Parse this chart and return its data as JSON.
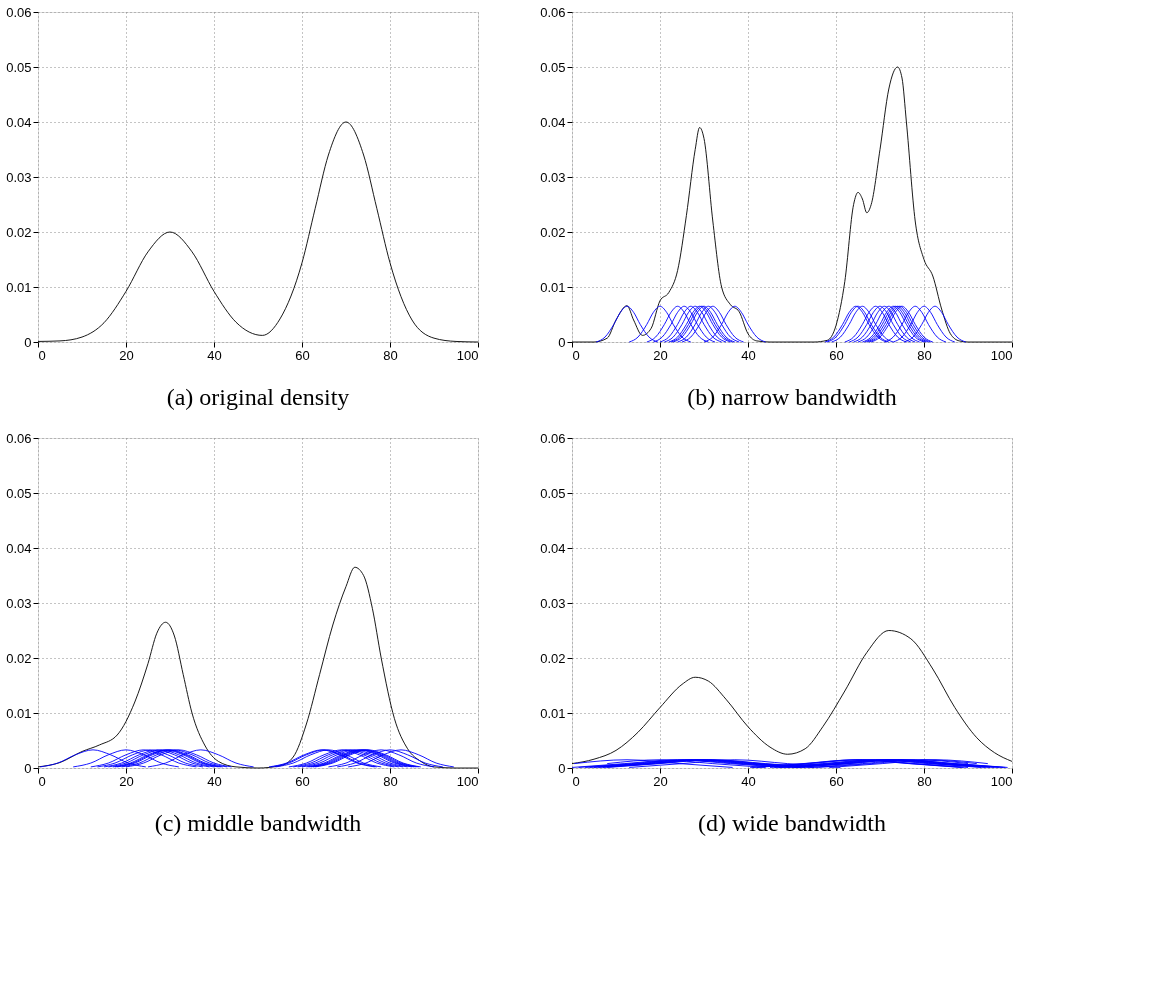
{
  "chart_data": [
    {
      "type": "line",
      "title": "(a) original density",
      "xlim": [
        0,
        100
      ],
      "ylim": [
        0,
        0.06
      ],
      "xticks": [
        0,
        20,
        40,
        60,
        80,
        100
      ],
      "yticks": [
        0,
        0.01,
        0.02,
        0.03,
        0.04,
        0.05,
        0.06
      ],
      "grid": true,
      "series": [
        {
          "color": "#000000",
          "x": [
            0,
            5,
            10,
            15,
            20,
            25,
            30,
            35,
            40,
            45,
            51,
            55,
            60,
            63,
            66,
            70,
            74,
            77,
            80,
            85,
            90,
            95,
            100
          ],
          "values": [
            0.0001,
            0.0002,
            0.0009,
            0.0035,
            0.0092,
            0.0164,
            0.02,
            0.0164,
            0.0092,
            0.0036,
            0.0012,
            0.0042,
            0.0144,
            0.0243,
            0.034,
            0.04,
            0.034,
            0.0243,
            0.0144,
            0.004,
            0.0007,
            0.0001,
            0
          ]
        }
      ]
    },
    {
      "type": "line",
      "title": "(b) narrow bandwidth",
      "xlim": [
        0,
        100
      ],
      "ylim": [
        0,
        0.06
      ],
      "xticks": [
        0,
        20,
        40,
        60,
        80,
        100
      ],
      "yticks": [
        0,
        0.01,
        0.02,
        0.03,
        0.04,
        0.05,
        0.06
      ],
      "grid": true,
      "series": [
        {
          "color": "#000000",
          "x": [
            0,
            5,
            8,
            10,
            12.5,
            14,
            16,
            18,
            20,
            22,
            24,
            26,
            28,
            29,
            30,
            32,
            34,
            36,
            38,
            40,
            42,
            45,
            55,
            58,
            60,
            62,
            64,
            65,
            66,
            67,
            68,
            70,
            72,
            74,
            75,
            76,
            78,
            80,
            82,
            84,
            86,
            88,
            90,
            100
          ],
          "values": [
            0,
            0,
            0.0007,
            0.004,
            0.0066,
            0.004,
            0.0012,
            0.0025,
            0.0075,
            0.009,
            0.013,
            0.023,
            0.035,
            0.039,
            0.037,
            0.022,
            0.01,
            0.0068,
            0.0055,
            0.0015,
            0.0002,
            0,
            0,
            0.0003,
            0.003,
            0.011,
            0.025,
            0.0272,
            0.026,
            0.0235,
            0.025,
            0.035,
            0.046,
            0.05,
            0.048,
            0.04,
            0.022,
            0.015,
            0.012,
            0.006,
            0.0015,
            0.0002,
            0,
            0
          ]
        },
        {
          "color": "#0000ff",
          "x": [
            5.5,
            7.5,
            9.5,
            11,
            12.5,
            14,
            15.5,
            17.5,
            19.5
          ],
          "values": [
            0,
            0.0009,
            0.0032,
            0.0054,
            0.0065,
            0.0054,
            0.0032,
            0.0009,
            0
          ]
        },
        {
          "color": "#0000ff",
          "x": [
            13,
            15,
            17,
            18.5,
            20,
            21.5,
            23,
            25,
            27
          ],
          "values": [
            0,
            0.0009,
            0.0032,
            0.0054,
            0.0065,
            0.0054,
            0.0032,
            0.0009,
            0
          ]
        },
        {
          "color": "#0000ff",
          "x": [
            17,
            19,
            21,
            22.5,
            24,
            25.5,
            27,
            29,
            31
          ],
          "values": [
            0,
            0.0009,
            0.0032,
            0.0054,
            0.0065,
            0.0054,
            0.0032,
            0.0009,
            0
          ]
        },
        {
          "color": "#0000ff",
          "x": [
            18.5,
            20.5,
            22.5,
            24,
            25.5,
            27,
            28.5,
            30.5,
            32.5
          ],
          "values": [
            0,
            0.0009,
            0.0032,
            0.0054,
            0.0065,
            0.0054,
            0.0032,
            0.0009,
            0
          ]
        },
        {
          "color": "#0000ff",
          "x": [
            20,
            22,
            24,
            25.5,
            27,
            28.5,
            30,
            32,
            34
          ],
          "values": [
            0,
            0.0009,
            0.0032,
            0.0054,
            0.0065,
            0.0054,
            0.0032,
            0.0009,
            0
          ]
        },
        {
          "color": "#0000ff",
          "x": [
            21,
            23,
            25,
            26.5,
            28,
            29.5,
            31,
            33,
            35
          ],
          "values": [
            0,
            0.0009,
            0.0032,
            0.0054,
            0.0065,
            0.0054,
            0.0032,
            0.0009,
            0
          ]
        },
        {
          "color": "#0000ff",
          "x": [
            22,
            24,
            26,
            27.5,
            29,
            30.5,
            32,
            34,
            36
          ],
          "values": [
            0,
            0.0009,
            0.0032,
            0.0054,
            0.0065,
            0.0054,
            0.0032,
            0.0009,
            0
          ]
        },
        {
          "color": "#0000ff",
          "x": [
            22.5,
            24.5,
            26.5,
            28,
            29.5,
            31,
            32.5,
            34.5,
            36.5
          ],
          "values": [
            0,
            0.0009,
            0.0032,
            0.0054,
            0.0065,
            0.0054,
            0.0032,
            0.0009,
            0
          ]
        },
        {
          "color": "#0000ff",
          "x": [
            23,
            25,
            27,
            28.5,
            30,
            31.5,
            33,
            35,
            37
          ],
          "values": [
            0,
            0.0009,
            0.0032,
            0.0054,
            0.0065,
            0.0054,
            0.0032,
            0.0009,
            0
          ]
        },
        {
          "color": "#0000ff",
          "x": [
            24,
            26,
            28,
            29.5,
            31,
            32.5,
            34,
            36,
            38
          ],
          "values": [
            0,
            0.0009,
            0.0032,
            0.0054,
            0.0065,
            0.0054,
            0.0032,
            0.0009,
            0
          ]
        },
        {
          "color": "#0000ff",
          "x": [
            25,
            27,
            29,
            30.5,
            32,
            33.5,
            35,
            37,
            39
          ],
          "values": [
            0,
            0.0009,
            0.0032,
            0.0054,
            0.0065,
            0.0054,
            0.0032,
            0.0009,
            0
          ]
        },
        {
          "color": "#0000ff",
          "x": [
            30,
            32,
            34,
            35.5,
            37,
            38.5,
            40,
            42,
            44
          ],
          "values": [
            0,
            0.0009,
            0.0032,
            0.0054,
            0.0065,
            0.0054,
            0.0032,
            0.0009,
            0
          ]
        },
        {
          "color": "#0000ff",
          "x": [
            57.5,
            59.5,
            61.5,
            63,
            64.5,
            66,
            67.5,
            69.5,
            71.5
          ],
          "values": [
            0,
            0.0009,
            0.0032,
            0.0054,
            0.0065,
            0.0054,
            0.0032,
            0.0009,
            0
          ]
        },
        {
          "color": "#0000ff",
          "x": [
            58,
            60,
            62,
            63.5,
            65,
            66.5,
            68,
            70,
            72
          ],
          "values": [
            0,
            0.0009,
            0.0032,
            0.0054,
            0.0065,
            0.0054,
            0.0032,
            0.0009,
            0
          ]
        },
        {
          "color": "#0000ff",
          "x": [
            59,
            61,
            63,
            64.5,
            66,
            67.5,
            69,
            71,
            73
          ],
          "values": [
            0,
            0.0009,
            0.0032,
            0.0054,
            0.0065,
            0.0054,
            0.0032,
            0.0009,
            0
          ]
        },
        {
          "color": "#0000ff",
          "x": [
            62,
            64,
            66,
            67.5,
            69,
            70.5,
            72,
            74,
            76
          ],
          "values": [
            0,
            0.0009,
            0.0032,
            0.0054,
            0.0065,
            0.0054,
            0.0032,
            0.0009,
            0
          ]
        },
        {
          "color": "#0000ff",
          "x": [
            63,
            65,
            67,
            68.5,
            70,
            71.5,
            73,
            75,
            77
          ],
          "values": [
            0,
            0.0009,
            0.0032,
            0.0054,
            0.0065,
            0.0054,
            0.0032,
            0.0009,
            0
          ]
        },
        {
          "color": "#0000ff",
          "x": [
            64,
            66,
            68,
            69.5,
            71,
            72.5,
            74,
            76,
            78
          ],
          "values": [
            0,
            0.0009,
            0.0032,
            0.0054,
            0.0065,
            0.0054,
            0.0032,
            0.0009,
            0
          ]
        },
        {
          "color": "#0000ff",
          "x": [
            65,
            67,
            69,
            70.5,
            72,
            73.5,
            75,
            77,
            79
          ],
          "values": [
            0,
            0.0009,
            0.0032,
            0.0054,
            0.0065,
            0.0054,
            0.0032,
            0.0009,
            0
          ]
        },
        {
          "color": "#0000ff",
          "x": [
            66,
            68,
            70,
            71.5,
            73,
            74.5,
            76,
            78,
            80
          ],
          "values": [
            0,
            0.0009,
            0.0032,
            0.0054,
            0.0065,
            0.0054,
            0.0032,
            0.0009,
            0
          ]
        },
        {
          "color": "#0000ff",
          "x": [
            66.5,
            68.5,
            70.5,
            72,
            73.5,
            75,
            76.5,
            78.5,
            80.5
          ],
          "values": [
            0,
            0.0009,
            0.0032,
            0.0054,
            0.0065,
            0.0054,
            0.0032,
            0.0009,
            0
          ]
        },
        {
          "color": "#0000ff",
          "x": [
            67,
            69,
            71,
            72.5,
            74,
            75.5,
            77,
            79,
            81
          ],
          "values": [
            0,
            0.0009,
            0.0032,
            0.0054,
            0.0065,
            0.0054,
            0.0032,
            0.0009,
            0
          ]
        },
        {
          "color": "#0000ff",
          "x": [
            67.5,
            69.5,
            71.5,
            73,
            74.5,
            76,
            77.5,
            79.5,
            81.5
          ],
          "values": [
            0,
            0.0009,
            0.0032,
            0.0054,
            0.0065,
            0.0054,
            0.0032,
            0.0009,
            0
          ]
        },
        {
          "color": "#0000ff",
          "x": [
            68,
            70,
            72,
            73.5,
            75,
            76.5,
            78,
            80,
            82
          ],
          "values": [
            0,
            0.0009,
            0.0032,
            0.0054,
            0.0065,
            0.0054,
            0.0032,
            0.0009,
            0
          ]
        },
        {
          "color": "#0000ff",
          "x": [
            71,
            73,
            75,
            76.5,
            78,
            79.5,
            81,
            83,
            85
          ],
          "values": [
            0,
            0.0009,
            0.0032,
            0.0054,
            0.0065,
            0.0054,
            0.0032,
            0.0009,
            0
          ]
        },
        {
          "color": "#0000ff",
          "x": [
            73,
            75,
            77,
            78.5,
            80,
            81.5,
            83,
            85,
            87
          ],
          "values": [
            0,
            0.0009,
            0.0032,
            0.0054,
            0.0065,
            0.0054,
            0.0032,
            0.0009,
            0
          ]
        },
        {
          "color": "#0000ff",
          "x": [
            75.5,
            77.5,
            79.5,
            81,
            82.5,
            84,
            85.5,
            87.5,
            89.5
          ],
          "values": [
            0,
            0.0009,
            0.0032,
            0.0054,
            0.0065,
            0.0054,
            0.0032,
            0.0009,
            0
          ]
        }
      ]
    },
    {
      "type": "line",
      "title": "(c) middle bandwidth",
      "xlim": [
        0,
        100
      ],
      "ylim": [
        0,
        0.06
      ],
      "xticks": [
        0,
        20,
        40,
        60,
        80,
        100
      ],
      "yticks": [
        0,
        0.01,
        0.02,
        0.03,
        0.04,
        0.05,
        0.06
      ],
      "grid": true,
      "series": [
        {
          "color": "#000000",
          "x": [
            0,
            5,
            10,
            14,
            18,
            22,
            25,
            27,
            29,
            31,
            33,
            35,
            38,
            41,
            45,
            50,
            55,
            58,
            61,
            64,
            67,
            70,
            72,
            74,
            76,
            78,
            81,
            84,
            87,
            90,
            95,
            100
          ],
          "values": [
            0.0002,
            0.001,
            0.003,
            0.0042,
            0.006,
            0.012,
            0.019,
            0.0245,
            0.0265,
            0.024,
            0.017,
            0.01,
            0.004,
            0.0012,
            0.0002,
            0,
            0.0004,
            0.002,
            0.008,
            0.017,
            0.026,
            0.033,
            0.0365,
            0.035,
            0.029,
            0.02,
            0.009,
            0.0035,
            0.0012,
            0.0002,
            0,
            0
          ]
        },
        {
          "color": "#0000ff",
          "x": [
            0.5,
            4.5,
            8.5,
            12.5,
            16.5,
            20.5,
            24.5
          ],
          "values": [
            0.0002,
            0.0009,
            0.0024,
            0.0033,
            0.0024,
            0.0009,
            0.0002
          ]
        },
        {
          "color": "#0000ff",
          "x": [
            8,
            12,
            16,
            20,
            24,
            28,
            32
          ],
          "values": [
            0.0002,
            0.0009,
            0.0024,
            0.0033,
            0.0024,
            0.0009,
            0.0002
          ]
        },
        {
          "color": "#0000ff",
          "x": [
            12,
            16,
            20,
            24,
            28,
            32,
            36
          ],
          "values": [
            0.0002,
            0.0009,
            0.0024,
            0.0033,
            0.0024,
            0.0009,
            0.0002
          ]
        },
        {
          "color": "#0000ff",
          "x": [
            13.5,
            17.5,
            21.5,
            25.5,
            29.5,
            33.5,
            37.5
          ],
          "values": [
            0.0002,
            0.0009,
            0.0024,
            0.0033,
            0.0024,
            0.0009,
            0.0002
          ]
        },
        {
          "color": "#0000ff",
          "x": [
            15,
            19,
            23,
            27,
            31,
            35,
            39
          ],
          "values": [
            0.0002,
            0.0009,
            0.0024,
            0.0033,
            0.0024,
            0.0009,
            0.0002
          ]
        },
        {
          "color": "#0000ff",
          "x": [
            16,
            20,
            24,
            28,
            32,
            36,
            40
          ],
          "values": [
            0.0002,
            0.0009,
            0.0024,
            0.0033,
            0.0024,
            0.0009,
            0.0002
          ]
        },
        {
          "color": "#0000ff",
          "x": [
            17,
            21,
            25,
            29,
            33,
            37,
            41
          ],
          "values": [
            0.0002,
            0.0009,
            0.0024,
            0.0033,
            0.0024,
            0.0009,
            0.0002
          ]
        },
        {
          "color": "#0000ff",
          "x": [
            17.5,
            21.5,
            25.5,
            29.5,
            33.5,
            37.5,
            41.5
          ],
          "values": [
            0.0002,
            0.0009,
            0.0024,
            0.0033,
            0.0024,
            0.0009,
            0.0002
          ]
        },
        {
          "color": "#0000ff",
          "x": [
            18,
            22,
            26,
            30,
            34,
            38,
            42
          ],
          "values": [
            0.0002,
            0.0009,
            0.0024,
            0.0033,
            0.0024,
            0.0009,
            0.0002
          ]
        },
        {
          "color": "#0000ff",
          "x": [
            19,
            23,
            27,
            31,
            35,
            39,
            43
          ],
          "values": [
            0.0002,
            0.0009,
            0.0024,
            0.0033,
            0.0024,
            0.0009,
            0.0002
          ]
        },
        {
          "color": "#0000ff",
          "x": [
            20,
            24,
            28,
            32,
            36,
            40,
            44
          ],
          "values": [
            0.0002,
            0.0009,
            0.0024,
            0.0033,
            0.0024,
            0.0009,
            0.0002
          ]
        },
        {
          "color": "#0000ff",
          "x": [
            25,
            29,
            33,
            37,
            41,
            45,
            49
          ],
          "values": [
            0.0002,
            0.0009,
            0.0024,
            0.0033,
            0.0024,
            0.0009,
            0.0002
          ]
        },
        {
          "color": "#0000ff",
          "x": [
            52.5,
            56.5,
            60.5,
            64.5,
            68.5,
            72.5,
            76.5
          ],
          "values": [
            0.0002,
            0.0009,
            0.0024,
            0.0033,
            0.0024,
            0.0009,
            0.0002
          ]
        },
        {
          "color": "#0000ff",
          "x": [
            53,
            57,
            61,
            65,
            69,
            73,
            77
          ],
          "values": [
            0.0002,
            0.0009,
            0.0024,
            0.0033,
            0.0024,
            0.0009,
            0.0002
          ]
        },
        {
          "color": "#0000ff",
          "x": [
            54,
            58,
            62,
            66,
            70,
            74,
            78
          ],
          "values": [
            0.0002,
            0.0009,
            0.0024,
            0.0033,
            0.0024,
            0.0009,
            0.0002
          ]
        },
        {
          "color": "#0000ff",
          "x": [
            57,
            61,
            65,
            69,
            73,
            77,
            81
          ],
          "values": [
            0.0002,
            0.0009,
            0.0024,
            0.0033,
            0.0024,
            0.0009,
            0.0002
          ]
        },
        {
          "color": "#0000ff",
          "x": [
            58,
            62,
            66,
            70,
            74,
            78,
            82
          ],
          "values": [
            0.0002,
            0.0009,
            0.0024,
            0.0033,
            0.0024,
            0.0009,
            0.0002
          ]
        },
        {
          "color": "#0000ff",
          "x": [
            59,
            63,
            67,
            71,
            75,
            79,
            83
          ],
          "values": [
            0.0002,
            0.0009,
            0.0024,
            0.0033,
            0.0024,
            0.0009,
            0.0002
          ]
        },
        {
          "color": "#0000ff",
          "x": [
            60,
            64,
            68,
            72,
            76,
            80,
            84
          ],
          "values": [
            0.0002,
            0.0009,
            0.0024,
            0.0033,
            0.0024,
            0.0009,
            0.0002
          ]
        },
        {
          "color": "#0000ff",
          "x": [
            61,
            65,
            69,
            73,
            77,
            81,
            85
          ],
          "values": [
            0.0002,
            0.0009,
            0.0024,
            0.0033,
            0.0024,
            0.0009,
            0.0002
          ]
        },
        {
          "color": "#0000ff",
          "x": [
            61.5,
            65.5,
            69.5,
            73.5,
            77.5,
            81.5,
            85.5
          ],
          "values": [
            0.0002,
            0.0009,
            0.0024,
            0.0033,
            0.0024,
            0.0009,
            0.0002
          ]
        },
        {
          "color": "#0000ff",
          "x": [
            62,
            66,
            70,
            74,
            78,
            82,
            86
          ],
          "values": [
            0.0002,
            0.0009,
            0.0024,
            0.0033,
            0.0024,
            0.0009,
            0.0002
          ]
        },
        {
          "color": "#0000ff",
          "x": [
            62.5,
            66.5,
            70.5,
            74.5,
            78.5,
            82.5,
            86.5
          ],
          "values": [
            0.0002,
            0.0009,
            0.0024,
            0.0033,
            0.0024,
            0.0009,
            0.0002
          ]
        },
        {
          "color": "#0000ff",
          "x": [
            63,
            67,
            71,
            75,
            79,
            83,
            87
          ],
          "values": [
            0.0002,
            0.0009,
            0.0024,
            0.0033,
            0.0024,
            0.0009,
            0.0002
          ]
        },
        {
          "color": "#0000ff",
          "x": [
            66,
            70,
            74,
            78,
            82,
            86,
            90
          ],
          "values": [
            0.0002,
            0.0009,
            0.0024,
            0.0033,
            0.0024,
            0.0009,
            0.0002
          ]
        },
        {
          "color": "#0000ff",
          "x": [
            68,
            72,
            76,
            80,
            84,
            88,
            92
          ],
          "values": [
            0.0002,
            0.0009,
            0.0024,
            0.0033,
            0.0024,
            0.0009,
            0.0002
          ]
        },
        {
          "color": "#0000ff",
          "x": [
            70.5,
            74.5,
            78.5,
            82.5,
            86.5,
            90.5,
            94.5
          ],
          "values": [
            0.0002,
            0.0009,
            0.0024,
            0.0033,
            0.0024,
            0.0009,
            0.0002
          ]
        }
      ]
    },
    {
      "type": "line",
      "title": "(d) wide bandwidth",
      "xlim": [
        0,
        100
      ],
      "ylim": [
        0,
        0.06
      ],
      "xticks": [
        0,
        20,
        40,
        60,
        80,
        100
      ],
      "yticks": [
        0,
        0.01,
        0.02,
        0.03,
        0.04,
        0.05,
        0.06
      ],
      "grid": true,
      "series": [
        {
          "color": "#000000",
          "x": [
            0,
            5,
            10,
            15,
            20,
            25,
            28,
            31,
            35,
            40,
            45,
            49,
            53,
            57,
            62,
            67,
            72,
            77,
            82,
            87,
            92,
            96,
            100
          ],
          "values": [
            0.0008,
            0.0016,
            0.0032,
            0.0065,
            0.011,
            0.0152,
            0.0165,
            0.0158,
            0.0125,
            0.0075,
            0.0038,
            0.0025,
            0.0035,
            0.0075,
            0.014,
            0.021,
            0.025,
            0.0235,
            0.018,
            0.011,
            0.0055,
            0.0028,
            0.0012
          ]
        },
        {
          "color": "#0000ff",
          "x": [
            0.5,
            12.5,
            24.5,
            36.5
          ],
          "values": [
            0.0008,
            0.0015,
            0.0008,
            0.0001
          ]
        },
        {
          "color": "#0000ff",
          "x": [
            8,
            20,
            32,
            44
          ],
          "values": [
            0.0008,
            0.0015,
            0.0008,
            0.0001
          ]
        },
        {
          "color": "#0000ff",
          "x": [
            0,
            12,
            24,
            36,
            48
          ],
          "values": [
            0.0001,
            0.0008,
            0.0015,
            0.0008,
            0.0001
          ]
        },
        {
          "color": "#0000ff",
          "x": [
            1.5,
            13.5,
            25.5,
            37.5,
            49.5
          ],
          "values": [
            0.0001,
            0.0008,
            0.0015,
            0.0008,
            0.0001
          ]
        },
        {
          "color": "#0000ff",
          "x": [
            3,
            15,
            27,
            39,
            51
          ],
          "values": [
            0.0001,
            0.0008,
            0.0015,
            0.0008,
            0.0001
          ]
        },
        {
          "color": "#0000ff",
          "x": [
            4,
            16,
            28,
            40,
            52
          ],
          "values": [
            0.0001,
            0.0008,
            0.0015,
            0.0008,
            0.0001
          ]
        },
        {
          "color": "#0000ff",
          "x": [
            5,
            17,
            29,
            41,
            53
          ],
          "values": [
            0.0001,
            0.0008,
            0.0015,
            0.0008,
            0.0001
          ]
        },
        {
          "color": "#0000ff",
          "x": [
            6,
            18,
            30,
            42,
            54
          ],
          "values": [
            0.0001,
            0.0008,
            0.0015,
            0.0008,
            0.0001
          ]
        },
        {
          "color": "#0000ff",
          "x": [
            7,
            19,
            31,
            43,
            55
          ],
          "values": [
            0.0001,
            0.0008,
            0.0015,
            0.0008,
            0.0001
          ]
        },
        {
          "color": "#0000ff",
          "x": [
            8,
            20,
            32,
            44,
            56
          ],
          "values": [
            0.0001,
            0.0008,
            0.0015,
            0.0008,
            0.0001
          ]
        },
        {
          "color": "#0000ff",
          "x": [
            13,
            25,
            37,
            49,
            61
          ],
          "values": [
            0.0001,
            0.0008,
            0.0015,
            0.0008,
            0.0001
          ]
        },
        {
          "color": "#0000ff",
          "x": [
            40.5,
            52.5,
            64.5,
            76.5,
            88.5
          ],
          "values": [
            0.0001,
            0.0008,
            0.0015,
            0.0008,
            0.0001
          ]
        },
        {
          "color": "#0000ff",
          "x": [
            41,
            53,
            65,
            77,
            89
          ],
          "values": [
            0.0001,
            0.0008,
            0.0015,
            0.0008,
            0.0001
          ]
        },
        {
          "color": "#0000ff",
          "x": [
            42,
            54,
            66,
            78,
            90
          ],
          "values": [
            0.0001,
            0.0008,
            0.0015,
            0.0008,
            0.0001
          ]
        },
        {
          "color": "#0000ff",
          "x": [
            45,
            57,
            69,
            81,
            93
          ],
          "values": [
            0.0001,
            0.0008,
            0.0015,
            0.0008,
            0.0001
          ]
        },
        {
          "color": "#0000ff",
          "x": [
            46,
            58,
            70,
            82,
            94
          ],
          "values": [
            0.0001,
            0.0008,
            0.0015,
            0.0008,
            0.0001
          ]
        },
        {
          "color": "#0000ff",
          "x": [
            47,
            59,
            71,
            83,
            95
          ],
          "values": [
            0.0001,
            0.0008,
            0.0015,
            0.0008,
            0.0001
          ]
        },
        {
          "color": "#0000ff",
          "x": [
            48,
            60,
            72,
            84,
            96
          ],
          "values": [
            0.0001,
            0.0008,
            0.0015,
            0.0008,
            0.0001
          ]
        },
        {
          "color": "#0000ff",
          "x": [
            49,
            61,
            73,
            85,
            97
          ],
          "values": [
            0.0001,
            0.0008,
            0.0015,
            0.0008,
            0.0001
          ]
        },
        {
          "color": "#0000ff",
          "x": [
            50,
            62,
            74,
            86,
            98
          ],
          "values": [
            0.0001,
            0.0008,
            0.0015,
            0.0008,
            0.0001
          ]
        },
        {
          "color": "#0000ff",
          "x": [
            50.5,
            62.5,
            74.5,
            86.5,
            98.5
          ],
          "values": [
            0.0001,
            0.0008,
            0.0015,
            0.0008,
            0.0001
          ]
        },
        {
          "color": "#0000ff",
          "x": [
            51,
            63,
            75,
            87,
            99
          ],
          "values": [
            0.0001,
            0.0008,
            0.0015,
            0.0008,
            0.0001
          ]
        },
        {
          "color": "#0000ff",
          "x": [
            54,
            66,
            78,
            90
          ],
          "values": [
            0.0001,
            0.0008,
            0.0015,
            0.0008
          ]
        },
        {
          "color": "#0000ff",
          "x": [
            56,
            68,
            80,
            92
          ],
          "values": [
            0.0001,
            0.0008,
            0.0015,
            0.0008
          ]
        },
        {
          "color": "#0000ff",
          "x": [
            58.5,
            70.5,
            82.5,
            94.5
          ],
          "values": [
            0.0001,
            0.0008,
            0.0015,
            0.0008
          ]
        }
      ]
    }
  ]
}
